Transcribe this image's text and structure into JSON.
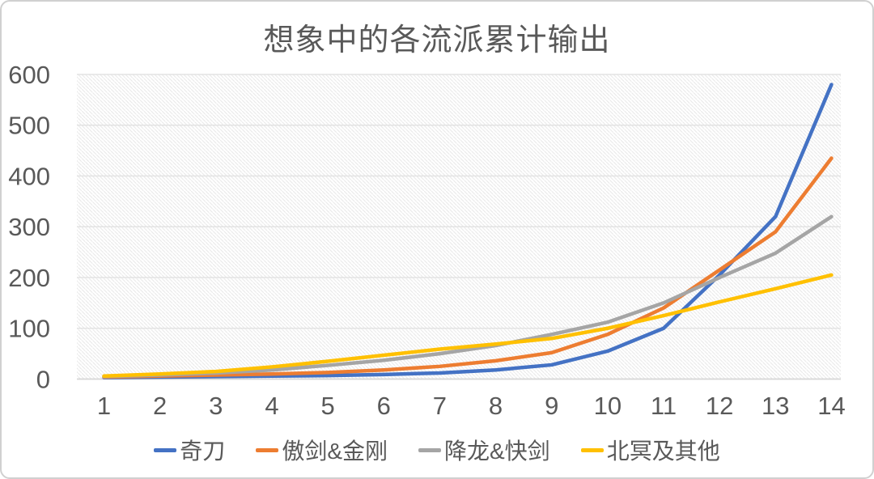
{
  "frame": {
    "background": "#ffffff",
    "border_color": "#d0d0d0"
  },
  "chart_data": {
    "type": "line",
    "title": "想象中的各流派累计输出",
    "categories": [
      "1",
      "2",
      "3",
      "4",
      "5",
      "6",
      "7",
      "8",
      "9",
      "10",
      "11",
      "12",
      "13",
      "14"
    ],
    "series": [
      {
        "name": "奇刀",
        "color": "#4472C4",
        "values": [
          3,
          4,
          5,
          6,
          7,
          9,
          12,
          18,
          28,
          55,
          100,
          205,
          320,
          580
        ]
      },
      {
        "name": "傲剑&金刚",
        "color": "#ED7D31",
        "values": [
          4,
          6,
          8,
          10,
          13,
          18,
          25,
          36,
          52,
          88,
          140,
          215,
          290,
          435
        ]
      },
      {
        "name": "降龙&快剑",
        "color": "#A5A5A5",
        "values": [
          5,
          8,
          12,
          18,
          27,
          37,
          50,
          66,
          88,
          112,
          150,
          200,
          248,
          320
        ]
      },
      {
        "name": "北冥及其他",
        "color": "#FFC000",
        "values": [
          6,
          10,
          15,
          24,
          35,
          47,
          59,
          69,
          80,
          100,
          125,
          152,
          178,
          205
        ]
      }
    ],
    "xlabel": "",
    "ylabel": "",
    "ylim": [
      0,
      600
    ],
    "yticks": [
      0,
      100,
      200,
      300,
      400,
      500,
      600
    ],
    "grid": true,
    "legend_position": "bottom",
    "styles": {
      "text_color": "#595959",
      "gridline_color": "#e3e3e3",
      "axis_line_color": "#d6d6d6",
      "plot_hatch_color": "#e9e9e9",
      "plot_hatch_style": "light-downward-diagonal"
    }
  }
}
